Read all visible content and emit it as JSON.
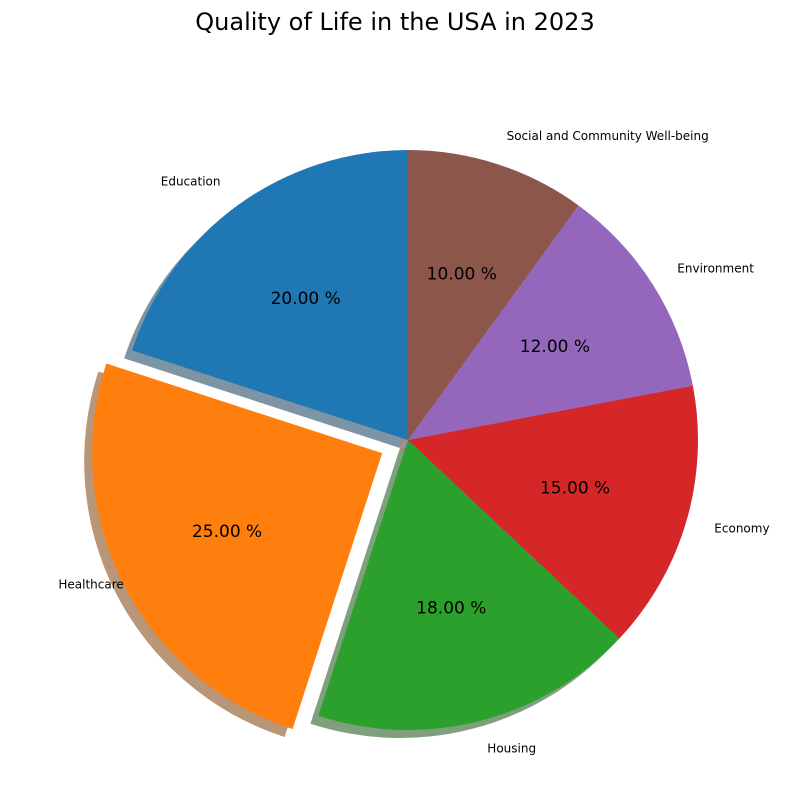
{
  "chart_data": {
    "type": "pie",
    "title": "Quality of Life in the USA in 2023",
    "categories": [
      "Education",
      "Healthcare",
      "Housing",
      "Economy",
      "Environment",
      "Social and Community Well-being"
    ],
    "values": [
      20,
      25,
      18,
      15,
      12,
      10
    ],
    "percent_labels": [
      "20.00 %",
      "25.00 %",
      "18.00 %",
      "15.00 %",
      "12.00 %",
      "10.00 %"
    ],
    "colors": [
      "#1f77b4",
      "#ff7f0e",
      "#2ca02c",
      "#d62728",
      "#9467bd",
      "#8c564b"
    ],
    "start_angle": 90,
    "direction": "counterclockwise",
    "exploded": [
      "Healthcare"
    ],
    "shadow": true,
    "legend": "none"
  }
}
